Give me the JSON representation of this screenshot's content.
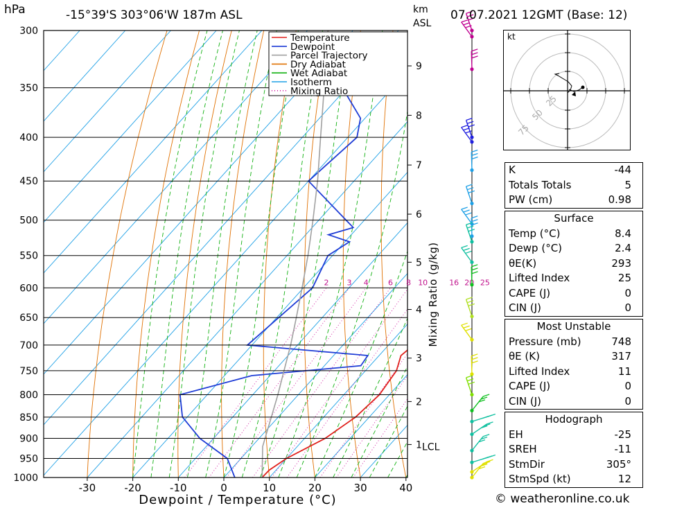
{
  "header": {
    "pressure_unit": "hPa",
    "location": "-15°39'S 303°06'W 187m ASL",
    "height_unit_top": "km",
    "height_unit_bottom": "ASL",
    "datetime": "07.07.2021 12GMT (Base: 12)"
  },
  "chart_data": {
    "type": "line",
    "xlabel": "Dewpoint / Temperature (°C)",
    "ylabel": "hPa",
    "right_label": "Mixing Ratio (g/kg)",
    "xlim": [
      -40,
      40
    ],
    "ylim": [
      1000,
      300
    ],
    "x_ticks": [
      -30,
      -20,
      -10,
      0,
      10,
      20,
      30,
      40
    ],
    "pressure_levels": [
      300,
      350,
      400,
      450,
      500,
      550,
      600,
      650,
      700,
      750,
      800,
      850,
      900,
      950,
      1000
    ],
    "height_km_ticks": [
      {
        "label": "9",
        "p": 330
      },
      {
        "label": "8",
        "p": 377
      },
      {
        "label": "7",
        "p": 431
      },
      {
        "label": "6",
        "p": 492
      },
      {
        "label": "5",
        "p": 560
      },
      {
        "label": "4",
        "p": 636
      },
      {
        "label": "3",
        "p": 725
      },
      {
        "label": "2",
        "p": 815
      },
      {
        "label": "1",
        "p": 915
      }
    ],
    "lcl_label": "LCL",
    "lcl_p": 920,
    "mixing_ratio_labels": [
      {
        "label": "2",
        "w": 2
      },
      {
        "label": "3",
        "w": 3
      },
      {
        "label": "4",
        "w": 4
      },
      {
        "label": "6",
        "w": 6
      },
      {
        "label": "8",
        "w": 8
      },
      {
        "label": "10",
        "w": 10
      },
      {
        "label": "16",
        "w": 16
      },
      {
        "label": "20",
        "w": 20
      },
      {
        "label": "25",
        "w": 25
      }
    ],
    "mixing_ratio_label_p": 600,
    "legend": [
      {
        "name": "Temperature",
        "color": "#e0201c"
      },
      {
        "name": "Dewpoint",
        "color": "#1e3cd6"
      },
      {
        "name": "Parcel Trajectory",
        "color": "#a0a0a0"
      },
      {
        "name": "Dry Adiabat",
        "color": "#e07000"
      },
      {
        "name": "Wet Adiabat",
        "color": "#10b010"
      },
      {
        "name": "Isotherm",
        "color": "#1ea0e6"
      },
      {
        "name": "Mixing Ratio",
        "color": "#d0109c"
      }
    ],
    "series": [
      {
        "name": "Temperature",
        "color": "#e0201c",
        "points": [
          [
            1000,
            8.4
          ],
          [
            980,
            8.5
          ],
          [
            950,
            10
          ],
          [
            900,
            14.5
          ],
          [
            850,
            17
          ],
          [
            800,
            17.8
          ],
          [
            750,
            16.8
          ],
          [
            720,
            14.8
          ],
          [
            700,
            15.5
          ],
          [
            650,
            13
          ],
          [
            600,
            7
          ],
          [
            550,
            0.5
          ],
          [
            500,
            -5.5
          ],
          [
            450,
            -13.5
          ],
          [
            400,
            -22.5
          ],
          [
            370,
            -28
          ],
          [
            350,
            -33
          ],
          [
            320,
            -40
          ],
          [
            300,
            -45.5
          ]
        ]
      },
      {
        "name": "Dewpoint",
        "color": "#1e3cd6",
        "points": [
          [
            1000,
            2.4
          ],
          [
            950,
            -3
          ],
          [
            900,
            -13
          ],
          [
            850,
            -21
          ],
          [
            845,
            -21.5
          ],
          [
            800,
            -26
          ],
          [
            760,
            -14
          ],
          [
            740,
            8
          ],
          [
            720,
            7.5
          ],
          [
            700,
            -21
          ],
          [
            600,
            -18
          ],
          [
            550,
            -21
          ],
          [
            530,
            -19
          ],
          [
            520,
            -25
          ],
          [
            510,
            -21
          ],
          [
            500,
            -24
          ],
          [
            450,
            -40
          ],
          [
            400,
            -38
          ],
          [
            380,
            -41
          ],
          [
            350,
            -51
          ],
          [
            330,
            -30
          ],
          [
            320,
            -36
          ],
          [
            300,
            -38
          ]
        ]
      },
      {
        "name": "Parcel Trajectory",
        "color": "#a0a0a0",
        "points": [
          [
            1000,
            8.4
          ],
          [
            920,
            2.4
          ],
          [
            850,
            -1.5
          ],
          [
            800,
            -4.5
          ],
          [
            750,
            -7.9
          ],
          [
            700,
            -11.5
          ],
          [
            650,
            -15.7
          ],
          [
            600,
            -20.3
          ],
          [
            550,
            -25.4
          ],
          [
            500,
            -31.3
          ],
          [
            450,
            -38
          ],
          [
            400,
            -46
          ],
          [
            350,
            -55
          ],
          [
            300,
            -65.5
          ]
        ]
      }
    ],
    "wind_profile": [
      {
        "p": 300,
        "color": "#c00090"
      },
      {
        "p": 305,
        "color": "#c00090"
      },
      {
        "p": 333,
        "color": "#c00090"
      },
      {
        "p": 400,
        "color": "#2020e0"
      },
      {
        "p": 405,
        "color": "#2020e0"
      },
      {
        "p": 437,
        "color": "#1ea0e6"
      },
      {
        "p": 478,
        "color": "#1ea0e6"
      },
      {
        "p": 505,
        "color": "#1ea0e6"
      },
      {
        "p": 522,
        "color": "#1ea0e6"
      },
      {
        "p": 530,
        "color": "#10c0a0"
      },
      {
        "p": 560,
        "color": "#10c0a0"
      },
      {
        "p": 595,
        "color": "#10c020"
      },
      {
        "p": 648,
        "color": "#b0e020"
      },
      {
        "p": 690,
        "color": "#e0e000"
      },
      {
        "p": 757,
        "color": "#e0e000"
      },
      {
        "p": 800,
        "color": "#80e000"
      },
      {
        "p": 835,
        "color": "#10c020"
      },
      {
        "p": 860,
        "color": "#10c0a0"
      },
      {
        "p": 890,
        "color": "#10c0a0"
      },
      {
        "p": 930,
        "color": "#10c0a0"
      },
      {
        "p": 960,
        "color": "#10c0a0"
      },
      {
        "p": 985,
        "color": "#e0e000"
      },
      {
        "p": 1000,
        "color": "#e0e000"
      }
    ]
  },
  "hodograph": {
    "unit": "kt",
    "ring_labels": [
      "25",
      "50",
      "75"
    ]
  },
  "indices": [
    {
      "label": "K",
      "value": "-44"
    },
    {
      "label": "Totals Totals",
      "value": "5"
    },
    {
      "label": "PW (cm)",
      "value": "0.98"
    }
  ],
  "surface": {
    "title": "Surface",
    "rows": [
      {
        "label": "Temp (°C)",
        "value": "8.4"
      },
      {
        "label": "Dewp (°C)",
        "value": "2.4"
      },
      {
        "label": "θE(K)",
        "value": "293"
      },
      {
        "label": "Lifted Index",
        "value": "25"
      },
      {
        "label": "CAPE (J)",
        "value": "0"
      },
      {
        "label": "CIN (J)",
        "value": "0"
      }
    ]
  },
  "most_unstable": {
    "title": "Most Unstable",
    "rows": [
      {
        "label": "Pressure (mb)",
        "value": "748"
      },
      {
        "label": "θE (K)",
        "value": "317"
      },
      {
        "label": "Lifted Index",
        "value": "11"
      },
      {
        "label": "CAPE (J)",
        "value": "0"
      },
      {
        "label": "CIN (J)",
        "value": "0"
      }
    ]
  },
  "hodograph_table": {
    "title": "Hodograph",
    "rows": [
      {
        "label": "EH",
        "value": "-25"
      },
      {
        "label": "SREH",
        "value": "-11"
      },
      {
        "label": "StmDir",
        "value": "305°"
      },
      {
        "label": "StmSpd (kt)",
        "value": "12"
      }
    ]
  },
  "credit": "© weatheronline.co.uk"
}
